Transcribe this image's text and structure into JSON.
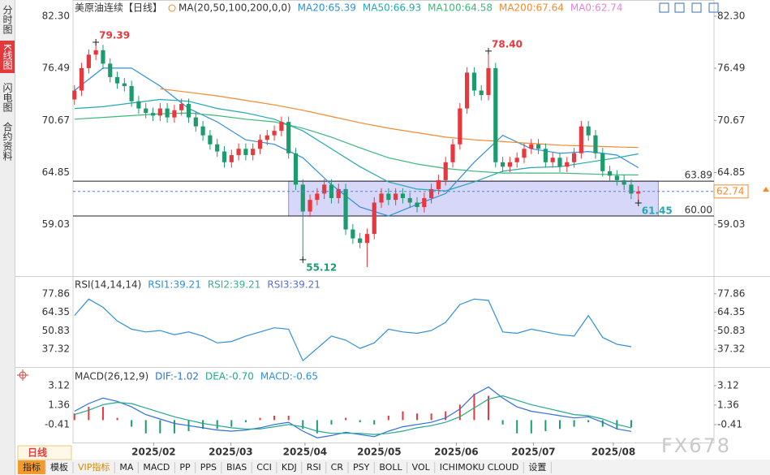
{
  "sidebar": [
    "分时图",
    "K线图",
    "闪电图",
    "合约资料"
  ],
  "period": "日线",
  "toolbar": [
    "指标",
    "模板",
    "VIP指标",
    "MA",
    "MACD",
    "PP",
    "PPS",
    "BIAS",
    "CCI",
    "KDJ",
    "RSI",
    "CR",
    "PSY",
    "BOLL",
    "VOL",
    "ICHIMOKU CLOUD",
    "设置"
  ],
  "watermark": "FX678",
  "chart_data": [
    {
      "type": "candlestick",
      "title": "美原油连续【日线】",
      "indicator_label": "MA(20,50,100,200,0,0)",
      "up_color": "#e8383d",
      "down_color": "#1e9b6e",
      "xlim": [
        -0.2,
        89.6
      ],
      "ylim": [
        53.3,
        84.1
      ],
      "yticks": [
        59.03,
        64.85,
        70.67,
        76.49,
        {
          "value": 82.3,
          "label": "82.30"
        }
      ],
      "x": [
        0,
        1,
        2,
        3,
        4,
        5,
        6,
        7,
        8,
        9,
        10,
        11,
        12,
        13,
        14,
        15,
        16,
        17,
        18,
        19,
        20,
        21,
        22,
        23,
        24,
        25,
        26,
        27,
        28,
        29,
        30,
        31,
        32,
        33,
        34,
        35,
        36,
        37,
        38,
        39,
        40,
        41,
        42,
        43,
        44,
        45,
        46,
        47,
        48,
        49,
        50,
        51,
        52,
        53,
        54,
        55,
        56,
        57,
        58,
        59,
        60,
        61,
        62,
        63,
        64,
        65,
        66,
        67,
        68,
        69,
        70,
        71,
        72,
        73,
        74,
        75,
        76,
        77,
        78,
        79
      ],
      "open": [
        73.0,
        74.0,
        76.5,
        78.0,
        78.5,
        77.0,
        75.5,
        74.8,
        74.5,
        72.8,
        72.0,
        71.5,
        71.2,
        72.0,
        71.0,
        71.8,
        72.5,
        71.0,
        70.0,
        69.0,
        68.0,
        67.2,
        66.0,
        66.8,
        67.5,
        66.8,
        67.5,
        68.5,
        69.0,
        69.5,
        70.5,
        67.0,
        63.5,
        60.5,
        61.8,
        62.5,
        63.5,
        62.0,
        63.0,
        58.5,
        57.5,
        57.0,
        58.0,
        61.5,
        62.5,
        61.8,
        62.5,
        62.0,
        61.5,
        61.0,
        62.0,
        63.0,
        64.0,
        66.0,
        68.0,
        72.0,
        76.0,
        74.0,
        73.5,
        76.5,
        66.0,
        65.5,
        66.0,
        66.5,
        67.5,
        68.0,
        67.5,
        66.0,
        66.5,
        65.5,
        66.0,
        67.0,
        70.0,
        69.0,
        67.0,
        65.0,
        64.5,
        64.0,
        63.5,
        62.5
      ],
      "high": [
        74.6,
        77.1,
        78.6,
        79.39,
        79.1,
        77.6,
        76.1,
        75.4,
        75.1,
        73.4,
        72.6,
        72.1,
        72.6,
        72.6,
        72.4,
        73.1,
        73.1,
        71.6,
        70.6,
        69.6,
        68.6,
        67.8,
        67.4,
        68.1,
        68.1,
        68.1,
        69.1,
        69.6,
        70.1,
        71.1,
        71.1,
        67.6,
        64.1,
        62.4,
        63.1,
        64.1,
        64.1,
        63.6,
        63.6,
        59.1,
        58.1,
        58.6,
        62.1,
        63.1,
        63.1,
        63.1,
        63.1,
        62.6,
        62.1,
        62.6,
        63.6,
        64.6,
        66.6,
        68.6,
        72.6,
        76.6,
        76.6,
        74.6,
        78.4,
        77.1,
        66.6,
        66.6,
        67.1,
        68.1,
        68.6,
        68.6,
        68.1,
        67.1,
        67.1,
        66.6,
        67.6,
        70.6,
        70.6,
        69.6,
        67.6,
        65.6,
        65.1,
        64.6,
        64.1,
        63.34
      ],
      "low": [
        72.4,
        73.4,
        75.9,
        77.4,
        76.4,
        74.9,
        74.2,
        73.9,
        72.2,
        71.4,
        70.9,
        70.6,
        70.6,
        70.4,
        70.4,
        71.2,
        70.4,
        69.4,
        68.4,
        67.4,
        66.6,
        65.4,
        65.4,
        66.2,
        66.2,
        66.2,
        66.9,
        67.9,
        68.4,
        68.9,
        66.4,
        62.9,
        55.12,
        59.9,
        61.2,
        61.9,
        61.4,
        61.4,
        57.9,
        56.9,
        56.4,
        54.3,
        57.4,
        60.9,
        61.2,
        61.2,
        61.4,
        60.9,
        60.4,
        60.4,
        61.4,
        62.4,
        63.4,
        65.4,
        67.4,
        71.4,
        73.4,
        72.9,
        72.9,
        65.4,
        64.9,
        64.9,
        65.4,
        65.9,
        66.9,
        66.9,
        65.4,
        65.4,
        64.9,
        64.9,
        65.4,
        66.4,
        68.4,
        66.4,
        64.4,
        63.9,
        63.4,
        62.9,
        61.9,
        61.45
      ],
      "close": [
        74.0,
        76.5,
        78.0,
        78.5,
        77.0,
        75.5,
        74.8,
        74.5,
        72.8,
        72.0,
        71.5,
        71.2,
        72.0,
        71.0,
        71.8,
        72.5,
        71.0,
        70.0,
        69.0,
        68.0,
        67.2,
        66.0,
        66.8,
        67.5,
        66.8,
        67.5,
        68.5,
        69.0,
        69.5,
        70.5,
        67.0,
        63.5,
        60.5,
        61.8,
        62.5,
        63.5,
        62.0,
        63.0,
        58.5,
        57.5,
        57.0,
        58.0,
        61.5,
        62.5,
        61.8,
        62.5,
        62.0,
        61.5,
        61.0,
        62.0,
        63.0,
        64.0,
        66.0,
        68.0,
        72.0,
        76.0,
        74.0,
        73.5,
        76.5,
        66.0,
        65.5,
        66.0,
        66.5,
        67.5,
        68.0,
        67.5,
        66.0,
        66.5,
        65.5,
        66.0,
        67.0,
        70.0,
        69.0,
        67.0,
        65.0,
        64.5,
        64.0,
        63.5,
        62.5,
        62.74
      ],
      "series": [
        {
          "name": "MA20:65.39",
          "color": "#2f8fd8",
          "x": [
            0,
            4,
            8,
            12,
            16,
            20,
            24,
            28,
            32,
            36,
            40,
            44,
            48,
            52,
            56,
            60,
            64,
            68,
            72,
            76,
            79
          ],
          "values": [
            74.0,
            76.5,
            76.5,
            74.5,
            72.0,
            70.5,
            68.5,
            68.0,
            66.5,
            63.5,
            61.0,
            60.0,
            61.3,
            62.5,
            66.0,
            69.0,
            67.5,
            67.0,
            67.2,
            66.8,
            65.39
          ]
        },
        {
          "name": "MA50:66.93",
          "color": "#23a9b0",
          "x": [
            0,
            4,
            8,
            12,
            16,
            20,
            24,
            28,
            32,
            36,
            40,
            44,
            48,
            52,
            56,
            60,
            64,
            68,
            72,
            76,
            79
          ],
          "values": [
            72.0,
            72.2,
            72.6,
            73.0,
            72.8,
            72.0,
            71.5,
            70.8,
            69.5,
            67.5,
            65.5,
            63.8,
            63.0,
            62.8,
            63.8,
            65.0,
            65.4,
            65.5,
            66.0,
            66.5,
            66.93
          ]
        },
        {
          "name": "MA100:64.58",
          "color": "#3cb878",
          "x": [
            0,
            4,
            8,
            12,
            16,
            20,
            24,
            28,
            32,
            36,
            40,
            44,
            48,
            52,
            56,
            60,
            64,
            68,
            72,
            76,
            79
          ],
          "values": [
            70.8,
            71.0,
            71.2,
            71.4,
            71.5,
            71.2,
            70.8,
            70.5,
            69.8,
            68.8,
            67.6,
            66.5,
            65.8,
            65.3,
            65.0,
            64.8,
            64.8,
            64.8,
            64.7,
            64.6,
            64.58
          ]
        },
        {
          "name": "MA200:67.64",
          "color": "#f28a2e",
          "x": [
            0,
            4,
            8,
            12,
            16,
            20,
            24,
            28,
            32,
            36,
            40,
            44,
            48,
            52,
            56,
            60,
            64,
            68,
            72,
            76,
            79
          ],
          "values": [
            null,
            null,
            null,
            74.2,
            73.8,
            73.4,
            72.9,
            72.4,
            71.8,
            71.1,
            70.4,
            69.8,
            69.3,
            68.8,
            68.5,
            68.3,
            68.1,
            67.9,
            67.8,
            67.7,
            67.64
          ]
        }
      ],
      "legend_only": [
        {
          "name": "MA0:62.74",
          "color": "#e284d8"
        }
      ],
      "annotations": [
        {
          "x": 3,
          "value": 79.39,
          "label": "79.39",
          "color": "#e8383d"
        },
        {
          "x": 58,
          "value": 78.4,
          "label": "78.40",
          "color": "#e8383d"
        },
        {
          "x": 32,
          "value": 55.12,
          "label": "55.12",
          "color": "#1e9b6e"
        },
        {
          "x": 79,
          "value": 61.45,
          "label": "61.45",
          "color": "#23a9b0"
        }
      ],
      "levels": [
        {
          "value": 63.89,
          "label": "63.89"
        },
        {
          "value": 60,
          "label": "60.00"
        }
      ],
      "zone_x": [
        30,
        81.8
      ],
      "last_price": {
        "value": 62.74,
        "label": "62.74",
        "color": "#f28a2e"
      }
    },
    {
      "type": "line",
      "title": "RSI(14,14,14)",
      "xlim": [
        -0.2,
        89.6
      ],
      "ylim": [
        24.4,
        89.6
      ],
      "yticks": [
        37.32,
        50.83,
        64.35,
        77.86
      ],
      "series": [
        {
          "name": "RSI1:39.21",
          "color": "#2f8fd8",
          "x": [
            0,
            2,
            4,
            6,
            8,
            10,
            12,
            14,
            16,
            18,
            20,
            22,
            24,
            26,
            28,
            30,
            32,
            34,
            36,
            38,
            40,
            42,
            44,
            46,
            48,
            50,
            52,
            54,
            56,
            58,
            60,
            62,
            64,
            66,
            68,
            70,
            72,
            74,
            76,
            78
          ],
          "values": [
            62,
            74,
            68,
            58,
            52,
            50,
            51,
            48,
            50,
            47,
            42,
            43,
            47,
            50,
            53,
            52,
            29,
            38,
            47,
            44,
            38,
            42,
            52,
            50,
            49,
            51,
            57,
            70,
            74,
            73,
            50,
            49,
            52,
            50,
            48,
            47,
            62,
            46,
            41,
            39.21
          ]
        }
      ],
      "legend_only": [
        {
          "name": "RSI2:39.21",
          "color": "#3cae8c"
        },
        {
          "name": "RSI3:39.21",
          "color": "#5a6fd8"
        }
      ]
    },
    {
      "type": "macd",
      "title": "MACD(26,12,9)",
      "xlim": [
        -0.2,
        89.6
      ],
      "ylim": [
        -2.03,
        4.59
      ],
      "yticks": [
        -0.41,
        1.36,
        3.12
      ],
      "xticks": [
        {
          "value": 11.1,
          "label": "2025/02"
        },
        {
          "value": 21.9,
          "label": "2025/03"
        },
        {
          "value": 32.3,
          "label": "2025/04"
        },
        {
          "value": 42.7,
          "label": "2025/05"
        },
        {
          "value": 53.5,
          "label": "2025/06"
        },
        {
          "value": 64.3,
          "label": "2025/07"
        },
        {
          "value": 75.5,
          "label": "2025/08"
        }
      ],
      "x": [
        0,
        2,
        4,
        6,
        8,
        10,
        12,
        14,
        16,
        18,
        20,
        22,
        24,
        26,
        28,
        30,
        32,
        34,
        36,
        38,
        40,
        42,
        44,
        46,
        48,
        50,
        52,
        54,
        56,
        58,
        60,
        62,
        64,
        66,
        68,
        70,
        72,
        74,
        76,
        78
      ],
      "series": [
        {
          "name": "DIF:-1.02",
          "color": "#2f6fd8",
          "values": [
            0.8,
            1.5,
            2.0,
            1.7,
            1.2,
            0.5,
            0.1,
            -0.3,
            -0.5,
            -0.7,
            -0.9,
            -1.0,
            -0.9,
            -0.7,
            -0.4,
            -0.2,
            -1.0,
            -1.6,
            -1.4,
            -1.1,
            -1.3,
            -1.5,
            -1.0,
            -0.6,
            -0.4,
            -0.2,
            0.2,
            1.0,
            2.3,
            3.0,
            2.0,
            1.2,
            0.8,
            0.6,
            0.4,
            0.2,
            0.3,
            -0.2,
            -0.8,
            -1.02
          ]
        },
        {
          "name": "DEA:-0.70",
          "color": "#23a98c",
          "values": [
            0.5,
            0.9,
            1.4,
            1.6,
            1.5,
            1.1,
            0.7,
            0.3,
            0.0,
            -0.3,
            -0.5,
            -0.7,
            -0.8,
            -0.8,
            -0.6,
            -0.4,
            -0.6,
            -1.0,
            -1.2,
            -1.2,
            -1.2,
            -1.3,
            -1.2,
            -1.0,
            -0.7,
            -0.5,
            -0.2,
            0.3,
            1.1,
            1.9,
            2.2,
            1.8,
            1.4,
            1.1,
            0.8,
            0.5,
            0.4,
            0.1,
            -0.4,
            -0.7
          ]
        }
      ],
      "histogram": {
        "name": "MACD:-0.65",
        "color": "#2f8fd8",
        "up_color": "#e8383d",
        "down_color": "#1e9b6e",
        "values": [
          0.6,
          1.2,
          1.2,
          0.2,
          -0.6,
          -1.2,
          -1.2,
          -1.2,
          -1.0,
          -0.8,
          -0.8,
          -0.6,
          -0.2,
          0.2,
          0.4,
          0.4,
          -0.8,
          -1.2,
          -0.4,
          0.2,
          -0.2,
          -0.4,
          0.4,
          0.8,
          0.6,
          0.6,
          0.8,
          1.4,
          2.4,
          2.2,
          -0.4,
          -1.2,
          -1.2,
          -1.0,
          -0.8,
          -0.6,
          -0.2,
          -0.6,
          -0.8,
          -0.65
        ]
      }
    }
  ]
}
